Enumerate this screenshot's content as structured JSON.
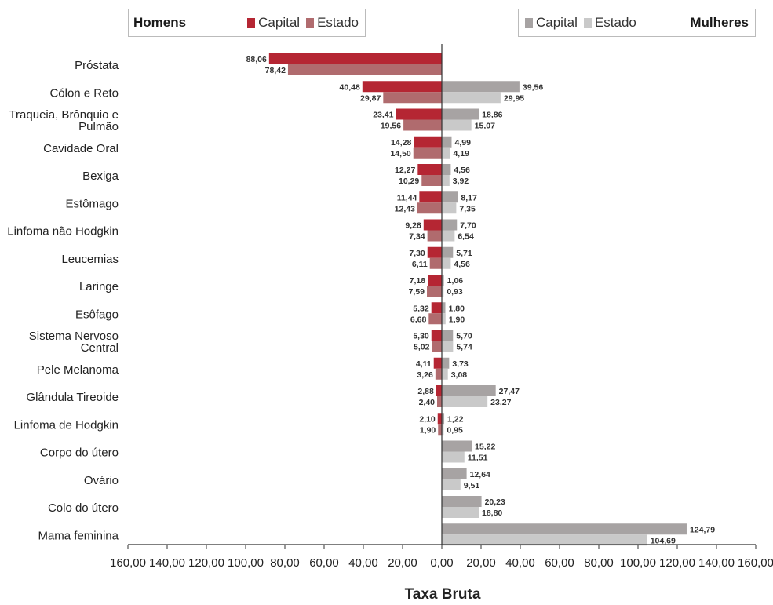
{
  "colors": {
    "men_capital": "#b52633",
    "men_estado": "#b06b6e",
    "women_capital": "#a7a3a3",
    "women_estado": "#c9c9c9",
    "axis": "#333333"
  },
  "legend": {
    "men": {
      "title": "Homens",
      "capital_label": "Capital",
      "estado_label": "Estado"
    },
    "women": {
      "title": "Mulheres",
      "capital_label": "Capital",
      "estado_label": "Estado"
    }
  },
  "chart_data": {
    "type": "bar",
    "orientation": "horizontal-back-to-back",
    "categories": [
      "Próstata",
      "Cólon e Reto",
      "Traqueia, Brônquio e Pulmão",
      "Cavidade Oral",
      "Bexiga",
      "Estômago",
      "Linfoma não Hodgkin",
      "Leucemias",
      "Laringe",
      "Esôfago",
      "Sistema Nervoso Central",
      "Pele Melanoma",
      "Glândula Tireoide",
      "Linfoma de Hodgkin",
      "Corpo do útero",
      "Ovário",
      "Colo do útero",
      "Mama feminina"
    ],
    "category_lines": [
      [
        "Próstata"
      ],
      [
        "Cólon e Reto"
      ],
      [
        "Traqueia, Brônquio e",
        "Pulmão"
      ],
      [
        "Cavidade Oral"
      ],
      [
        "Bexiga"
      ],
      [
        "Estômago"
      ],
      [
        "Linfoma não Hodgkin"
      ],
      [
        "Leucemias"
      ],
      [
        "Laringe"
      ],
      [
        "Esôfago"
      ],
      [
        "Sistema Nervoso",
        "Central"
      ],
      [
        "Pele Melanoma"
      ],
      [
        "Glândula Tireoide"
      ],
      [
        "Linfoma de Hodgkin"
      ],
      [
        "Corpo do útero"
      ],
      [
        "Ovário"
      ],
      [
        "Colo do útero"
      ],
      [
        "Mama feminina"
      ]
    ],
    "series": [
      {
        "name": "Homens Capital",
        "side": "left",
        "color": "#b52633",
        "values": [
          88.06,
          40.48,
          23.41,
          14.28,
          12.27,
          11.44,
          9.28,
          7.3,
          7.18,
          5.32,
          5.3,
          4.11,
          2.88,
          2.1,
          null,
          null,
          null,
          null
        ],
        "labels": [
          "88,06",
          "40,48",
          "23,41",
          "14,28",
          "12,27",
          "11,44",
          "9,28",
          "7,30",
          "7,18",
          "5,32",
          "5,30",
          "4,11",
          "2,88",
          "2,10",
          null,
          null,
          null,
          null
        ]
      },
      {
        "name": "Homens Estado",
        "side": "left",
        "color": "#b06b6e",
        "values": [
          78.42,
          29.87,
          19.56,
          14.5,
          10.29,
          12.43,
          7.34,
          6.11,
          7.59,
          6.68,
          5.02,
          3.26,
          2.4,
          1.9,
          null,
          null,
          null,
          null
        ],
        "labels": [
          "78,42",
          "29,87",
          "19,56",
          "14,50",
          "10,29",
          "12,43",
          "7,34",
          "6,11",
          "7,59",
          "6,68",
          "5,02",
          "3,26",
          "2,40",
          "1,90",
          null,
          null,
          null,
          null
        ]
      },
      {
        "name": "Mulheres Capital",
        "side": "right",
        "color": "#a7a3a3",
        "values": [
          null,
          39.56,
          18.86,
          4.99,
          4.56,
          8.17,
          7.7,
          5.71,
          1.06,
          1.8,
          5.7,
          3.73,
          27.47,
          1.22,
          15.22,
          12.64,
          20.23,
          124.79
        ],
        "labels": [
          null,
          "39,56",
          "18,86",
          "4,99",
          "4,56",
          "8,17",
          "7,70",
          "5,71",
          "1,06",
          "1,80",
          "5,70",
          "3,73",
          "27,47",
          "1,22",
          "15,22",
          "12,64",
          "20,23",
          "124,79"
        ]
      },
      {
        "name": "Mulheres Estado",
        "side": "right",
        "color": "#c9c9c9",
        "values": [
          null,
          29.95,
          15.07,
          4.19,
          3.92,
          7.35,
          6.54,
          4.56,
          0.93,
          1.9,
          5.74,
          3.08,
          23.27,
          0.95,
          11.51,
          9.51,
          18.8,
          104.69
        ],
        "labels": [
          null,
          "29,95",
          "15,07",
          "4,19",
          "3,92",
          "7,35",
          "6,54",
          "4,56",
          "0,93",
          "1,90",
          "5,74",
          "3,08",
          "23,27",
          "0,95",
          "11,51",
          "9,51",
          "18,80",
          "104,69"
        ]
      }
    ],
    "x_ticks": [
      {
        "value": -160,
        "label": "160,00"
      },
      {
        "value": -140,
        "label": "140,00"
      },
      {
        "value": -120,
        "label": "120,00"
      },
      {
        "value": -100,
        "label": "100,00"
      },
      {
        "value": -80,
        "label": "80,00"
      },
      {
        "value": -60,
        "label": "60,00"
      },
      {
        "value": -40,
        "label": "40,00"
      },
      {
        "value": -20,
        "label": "20,00"
      },
      {
        "value": 0,
        "label": "0,00"
      },
      {
        "value": 20,
        "label": "20,00"
      },
      {
        "value": 40,
        "label": "40,00"
      },
      {
        "value": 60,
        "label": "60,00"
      },
      {
        "value": 80,
        "label": "80,00"
      },
      {
        "value": 100,
        "label": "100,00"
      },
      {
        "value": 120,
        "label": "120,00"
      },
      {
        "value": 140,
        "label": "140,00"
      },
      {
        "value": 160,
        "label": "160,00"
      }
    ],
    "xlim": [
      -160,
      160
    ],
    "xlabel": "Taxa Bruta",
    "grid": false,
    "legend_position": "top"
  }
}
